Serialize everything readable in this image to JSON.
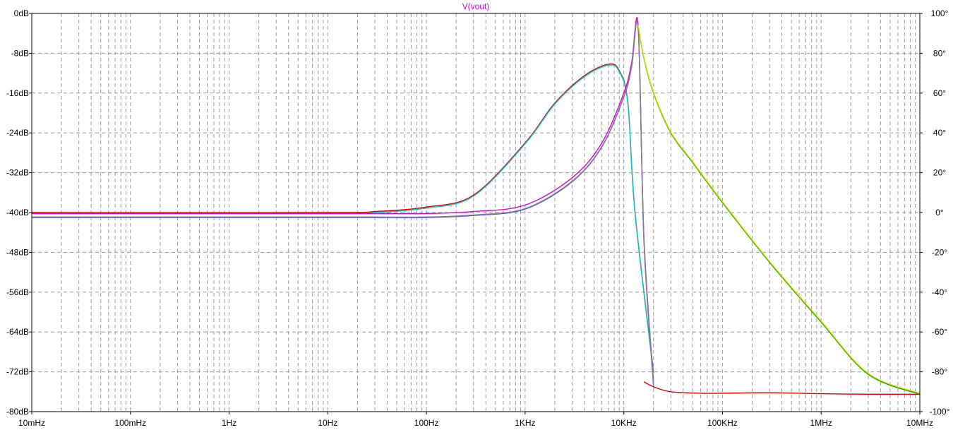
{
  "chart_data": {
    "type": "line",
    "title": "V(vout)",
    "x_scale": "log",
    "xlim_hz": [
      0.01,
      10000000
    ],
    "x_tick_values_hz": [
      0.01,
      0.1,
      1,
      10,
      100,
      1000,
      10000,
      100000,
      1000000,
      10000000
    ],
    "x_tick_labels": [
      "10mHz",
      "100mHz",
      "1Hz",
      "10Hz",
      "100Hz",
      "1KHz",
      "10KHz",
      "100KHz",
      "1MHz",
      "10MHz"
    ],
    "ylim_db": [
      -80,
      0
    ],
    "y_tick_values_db": [
      0,
      -8,
      -16,
      -24,
      -32,
      -40,
      -48,
      -56,
      -64,
      -72,
      -80
    ],
    "y_tick_labels": [
      "0dB",
      "-8dB",
      "-16dB",
      "-24dB",
      "-32dB",
      "-40dB",
      "-48dB",
      "-56dB",
      "-64dB",
      "-72dB",
      "-80dB"
    ],
    "y2lim_deg": [
      -100,
      100
    ],
    "y2_tick_values_deg": [
      100,
      80,
      60,
      40,
      20,
      0,
      -20,
      -40,
      -60,
      -80,
      -100
    ],
    "y2_tick_labels": [
      "100°",
      "80°",
      "60°",
      "40°",
      "20°",
      "0°",
      "-20°",
      "-40°",
      "-60°",
      "-80°",
      "-100°"
    ],
    "grid": true,
    "series": [
      {
        "color": "#e00000",
        "x": [
          0.01,
          10,
          30,
          100,
          300,
          1000,
          2000,
          4000,
          7000,
          9000,
          11000,
          13000,
          20000
        ],
        "y": [
          -40,
          -40,
          -39.8,
          -38.9,
          -36.5,
          -26,
          -18,
          -12.5,
          -10.2,
          -11.5,
          -18,
          -40,
          -72
        ]
      },
      {
        "color": "#00c8c8",
        "x": [
          0.01,
          10,
          30,
          100,
          300,
          1000,
          2000,
          4000,
          7000,
          9000,
          11000,
          13000,
          20000
        ],
        "y": [
          -40.2,
          -40.2,
          -40,
          -39.1,
          -36.7,
          -26.2,
          -18.2,
          -12.7,
          -10.4,
          -11.7,
          -18.2,
          -40.2,
          -72.2
        ]
      },
      {
        "color": "#e000e0",
        "x": [
          0.01,
          10,
          30,
          100,
          300,
          1000,
          3000,
          6000,
          10000,
          12000,
          14000,
          16000,
          20000
        ],
        "y": [
          -40.2,
          -40.2,
          -40.2,
          -40.2,
          -39.8,
          -38.5,
          -33,
          -26,
          -16,
          -10,
          -2.5,
          -45,
          -74
        ]
      },
      {
        "color": "#4040ff",
        "x": [
          0.01,
          10,
          30,
          100,
          300,
          1000,
          3000,
          6000,
          10000,
          12000,
          14000,
          16000,
          20000
        ],
        "y": [
          -41,
          -41,
          -41,
          -41,
          -40.6,
          -39.3,
          -33.8,
          -26.8,
          -16.8,
          -10.8,
          -3.3,
          -45.8,
          -74.8
        ]
      },
      {
        "color": "#808080",
        "x": [
          0.01,
          10,
          30,
          100,
          300,
          1000,
          3000,
          6000,
          10000,
          12000,
          14000,
          16000,
          20000
        ],
        "y": [
          -40.9,
          -40.9,
          -40.9,
          -40.9,
          -40.5,
          -39.2,
          -33.7,
          -26.7,
          -16.7,
          -10.7,
          -3.2,
          -45.7,
          -74.7
        ]
      },
      {
        "color": "#e00000",
        "x": [
          16000,
          20000,
          30000,
          60000,
          100000,
          300000,
          1000000,
          3000000,
          10000000
        ],
        "y": [
          -74,
          -75,
          -76,
          -76.3,
          -76.3,
          -76.2,
          -76.4,
          -76.5,
          -76.5
        ]
      },
      {
        "color": "#00a000",
        "x": [
          14000,
          16000,
          20000,
          30000,
          50000,
          100000,
          300000,
          1000000,
          3000000,
          10000000
        ],
        "y": [
          -2.5,
          -9,
          -16,
          -24,
          -30,
          -38,
          -50,
          -62,
          -72.5,
          -76.5
        ]
      },
      {
        "color": "#e0e000",
        "x": [
          14000,
          16000,
          20000,
          30000,
          50000,
          100000,
          300000,
          1000000,
          3000000,
          10000000
        ],
        "y": [
          -2.3,
          -8.8,
          -15.8,
          -23.8,
          -29.8,
          -37.8,
          -49.8,
          -61.8,
          -72.3,
          -76.3
        ]
      }
    ]
  }
}
